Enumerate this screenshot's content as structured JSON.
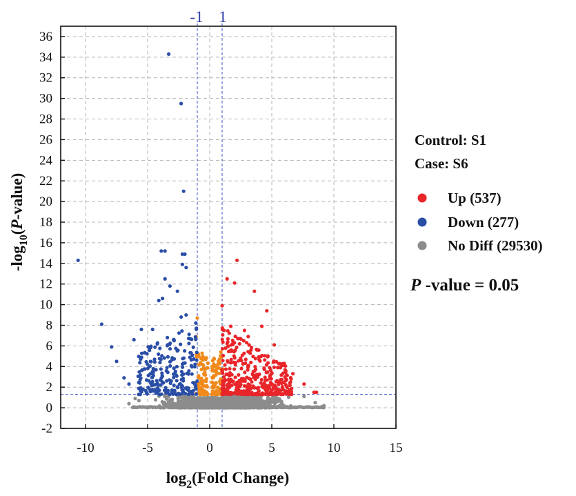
{
  "chart_data": {
    "type": "scatter",
    "title": "",
    "xlabel": {
      "prefix": "log",
      "sub": "2",
      "suffix": "(Fold Change)"
    },
    "ylabel": {
      "prefix": "-log",
      "sub": "10",
      "open": "(",
      "italic": "P",
      "suffix": "-value)"
    },
    "xlim": [
      -12,
      15
    ],
    "ylim": [
      -2,
      37
    ],
    "xticks": [
      -10,
      -5,
      0,
      5,
      10,
      15
    ],
    "yticks": [
      -2,
      0,
      2,
      4,
      6,
      8,
      10,
      12,
      14,
      16,
      18,
      20,
      22,
      24,
      26,
      28,
      30,
      32,
      34,
      36
    ],
    "grid": true,
    "fold_change_thresholds": [
      -1,
      1
    ],
    "threshold_labels": [
      "-1",
      "1"
    ],
    "pvalue_threshold_y": 1.3,
    "control_label": "Control: S1",
    "case_label": "Case: S6",
    "pvalue_label": {
      "italic": "P",
      "rest": " -value = 0.05"
    },
    "legend_position": "right",
    "colors": {
      "up": "#e8262a",
      "down": "#2a4ea6",
      "nodiff": "#8c8c8c",
      "borderline": "#f08a1c",
      "threshold": "#3b4fc4",
      "grid": "#b4b4b4"
    },
    "series": [
      {
        "name": "Up (537)",
        "key": "up",
        "highlight_points": [
          [
            2.2,
            14.3
          ],
          [
            1.4,
            12.5
          ],
          [
            2.0,
            12.1
          ],
          [
            1.0,
            9.9
          ],
          [
            3.6,
            11.3
          ],
          [
            4.6,
            9.4
          ],
          [
            4.2,
            7.9
          ],
          [
            2.8,
            7.5
          ],
          [
            3.1,
            6.9
          ],
          [
            1.7,
            7.9
          ],
          [
            5.2,
            6.1
          ],
          [
            6.0,
            4.3
          ],
          [
            6.7,
            3.3
          ],
          [
            7.6,
            2.3
          ],
          [
            8.6,
            1.5
          ],
          [
            8.4,
            1.5
          ],
          [
            1.6,
            5.5
          ],
          [
            2.4,
            6.2
          ]
        ],
        "density": {
          "x_range": [
            1.0,
            6.8
          ],
          "y_range": [
            1.3,
            6.8
          ],
          "count": 537
        }
      },
      {
        "name": "Down (277)",
        "key": "down",
        "highlight_points": [
          [
            -10.6,
            14.3
          ],
          [
            -3.3,
            34.3
          ],
          [
            -2.3,
            29.5
          ],
          [
            -2.1,
            21.0
          ],
          [
            -3.9,
            15.2
          ],
          [
            -3.6,
            15.2
          ],
          [
            -2.2,
            14.9
          ],
          [
            -2.0,
            14.9
          ],
          [
            -2.2,
            13.9
          ],
          [
            -1.9,
            13.6
          ],
          [
            -3.6,
            12.5
          ],
          [
            -3.2,
            11.8
          ],
          [
            -2.6,
            11.3
          ],
          [
            -4.1,
            10.4
          ],
          [
            -3.8,
            10.6
          ],
          [
            -8.7,
            8.1
          ],
          [
            -7.9,
            5.9
          ],
          [
            -7.5,
            4.5
          ],
          [
            -6.9,
            2.9
          ],
          [
            -6.5,
            2.3
          ],
          [
            -5.5,
            7.6
          ],
          [
            -6.1,
            6.6
          ],
          [
            -4.6,
            7.6
          ],
          [
            -2.3,
            8.8
          ],
          [
            -1.9,
            9.0
          ]
        ],
        "density": {
          "x_range": [
            -6.0,
            -1.0
          ],
          "y_range": [
            1.3,
            7.2
          ],
          "count": 277
        }
      },
      {
        "name": "No Diff (29530)",
        "key": "nodiff",
        "highlight_points": [
          [
            -6.5,
            0.4
          ],
          [
            -6.0,
            0.9
          ],
          [
            8.5,
            0.5
          ],
          [
            9.2,
            0.2
          ],
          [
            -5.7,
            0.7
          ],
          [
            7.6,
            1.1
          ]
        ],
        "density": {
          "x_range": [
            -6.2,
            9.2
          ],
          "y_range": [
            0.0,
            1.3
          ],
          "count": 29530
        }
      }
    ],
    "borderline": {
      "highlight_points": [
        [
          -1.0,
          8.7
        ],
        [
          -1.1,
          6.9
        ],
        [
          0.9,
          5.4
        ],
        [
          0.8,
          4.4
        ]
      ],
      "density": {
        "x_range": [
          -1.2,
          1.0
        ],
        "y_range": [
          1.3,
          7.0
        ]
      }
    }
  }
}
